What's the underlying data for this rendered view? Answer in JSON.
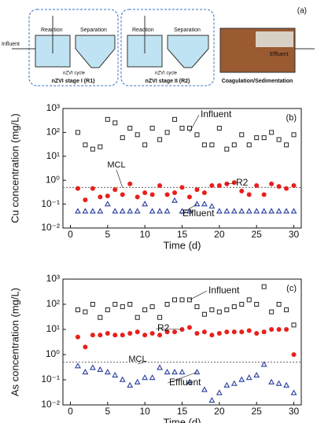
{
  "diagram": {
    "panel_label": "(a)",
    "influent": "Influent",
    "effluent": "Effluent",
    "stages": [
      {
        "reaction": "Reaction",
        "separation": "Separation",
        "cycle": "nZVI cycle",
        "name": "nZVI stage I (R1)"
      },
      {
        "reaction": "Reaction",
        "separation": "Separation",
        "cycle": "nZVI cycle",
        "name": "nZVI stage II (R2)"
      }
    ],
    "coagulation": "Coagulation/Sedimentation"
  },
  "chart_data": [
    {
      "type": "scatter",
      "panel_label": "(b)",
      "x_label": "Time (d)",
      "y_label": "Cu concentration (mg/L)",
      "log_y": true,
      "xlim": [
        -1,
        31
      ],
      "ylim": [
        0.01,
        1000
      ],
      "xticks": [
        0,
        5,
        10,
        15,
        20,
        25,
        30
      ],
      "yticks": [
        {
          "value": 0.01,
          "label": "10⁻²"
        },
        {
          "value": 0.1,
          "label": "10⁻¹"
        },
        {
          "value": 1,
          "label": "10⁰"
        },
        {
          "value": 10,
          "label": "10¹"
        },
        {
          "value": 100,
          "label": "10²"
        },
        {
          "value": 1000,
          "label": "10³"
        }
      ],
      "reference_line": {
        "label": "MCL",
        "value": 0.5
      },
      "x": [
        1,
        2,
        3,
        4,
        5,
        6,
        7,
        8,
        9,
        10,
        11,
        12,
        13,
        14,
        15,
        16,
        17,
        18,
        19,
        20,
        21,
        22,
        23,
        24,
        25,
        26,
        27,
        28,
        29,
        30
      ],
      "series": [
        {
          "name": "Influent",
          "color": "#222222",
          "marker": "square",
          "values": [
            100,
            30,
            20,
            25,
            350,
            250,
            60,
            150,
            80,
            30,
            150,
            50,
            100,
            350,
            150,
            150,
            80,
            30,
            30,
            150,
            20,
            30,
            80,
            30,
            60,
            60,
            100,
            50,
            30,
            80
          ]
        },
        {
          "name": "R2",
          "color": "#e8201c",
          "marker": "circle",
          "values": [
            0.45,
            0.15,
            0.45,
            0.2,
            0.22,
            0.4,
            0.25,
            0.7,
            0.2,
            0.3,
            0.25,
            0.6,
            0.25,
            0.3,
            0.5,
            0.2,
            0.4,
            0.3,
            0.6,
            0.6,
            0.7,
            0.8,
            0.35,
            0.25,
            0.6,
            0.25,
            0.7,
            0.55,
            0.45,
            0.6
          ]
        },
        {
          "name": "Effluent",
          "color": "#2a3f9e",
          "marker": "triangle",
          "values": [
            0.05,
            0.05,
            0.05,
            0.05,
            0.1,
            0.05,
            0.05,
            0.05,
            0.05,
            0.1,
            0.05,
            0.05,
            0.05,
            0.14,
            0.05,
            0.05,
            0.1,
            0.1,
            0.08,
            0.05,
            0.05,
            0.05,
            0.05,
            0.05,
            0.05,
            0.05,
            0.05,
            0.05,
            0.05,
            0.05
          ]
        }
      ]
    },
    {
      "type": "scatter",
      "panel_label": "(c)",
      "x_label": "Time (d)",
      "y_label": "As concentration (mg/L)",
      "log_y": true,
      "xlim": [
        -1,
        31
      ],
      "ylim": [
        0.01,
        1000
      ],
      "xticks": [
        0,
        5,
        10,
        15,
        20,
        25,
        30
      ],
      "yticks": [
        {
          "value": 0.01,
          "label": "10⁻²"
        },
        {
          "value": 0.1,
          "label": "10⁻¹"
        },
        {
          "value": 1,
          "label": "10⁰"
        },
        {
          "value": 10,
          "label": "10¹"
        },
        {
          "value": 100,
          "label": "10²"
        },
        {
          "value": 1000,
          "label": "10³"
        }
      ],
      "reference_line": {
        "label": "MCL",
        "value": 0.5
      },
      "x": [
        1,
        2,
        3,
        4,
        5,
        6,
        7,
        8,
        9,
        10,
        11,
        12,
        13,
        14,
        15,
        16,
        17,
        18,
        19,
        20,
        21,
        22,
        23,
        24,
        25,
        26,
        27,
        28,
        29,
        30
      ],
      "series": [
        {
          "name": "Influent",
          "color": "#222222",
          "marker": "square",
          "values": [
            60,
            50,
            100,
            30,
            60,
            100,
            80,
            100,
            30,
            60,
            80,
            30,
            100,
            150,
            150,
            150,
            80,
            40,
            60,
            50,
            60,
            80,
            100,
            150,
            100,
            500,
            50,
            100,
            60,
            15
          ]
        },
        {
          "name": "R2",
          "color": "#e8201c",
          "marker": "circle",
          "values": [
            5,
            2,
            6,
            6,
            7,
            6,
            6,
            7,
            8,
            6,
            7,
            6,
            8,
            8,
            10,
            12,
            7,
            8,
            6,
            7,
            8,
            8,
            8,
            9,
            7,
            8,
            10,
            10,
            10,
            1
          ]
        },
        {
          "name": "Effluent",
          "color": "#2a3f9e",
          "marker": "triangle",
          "values": [
            0.35,
            0.2,
            0.3,
            0.25,
            0.2,
            0.15,
            0.1,
            0.06,
            0.08,
            0.12,
            0.12,
            0.3,
            0.2,
            0.2,
            0.2,
            0.08,
            0.2,
            0.04,
            0.015,
            0.03,
            0.06,
            0.07,
            0.1,
            0.12,
            0.15,
            0.4,
            0.08,
            0.07,
            0.06,
            0.03
          ]
        }
      ]
    }
  ]
}
